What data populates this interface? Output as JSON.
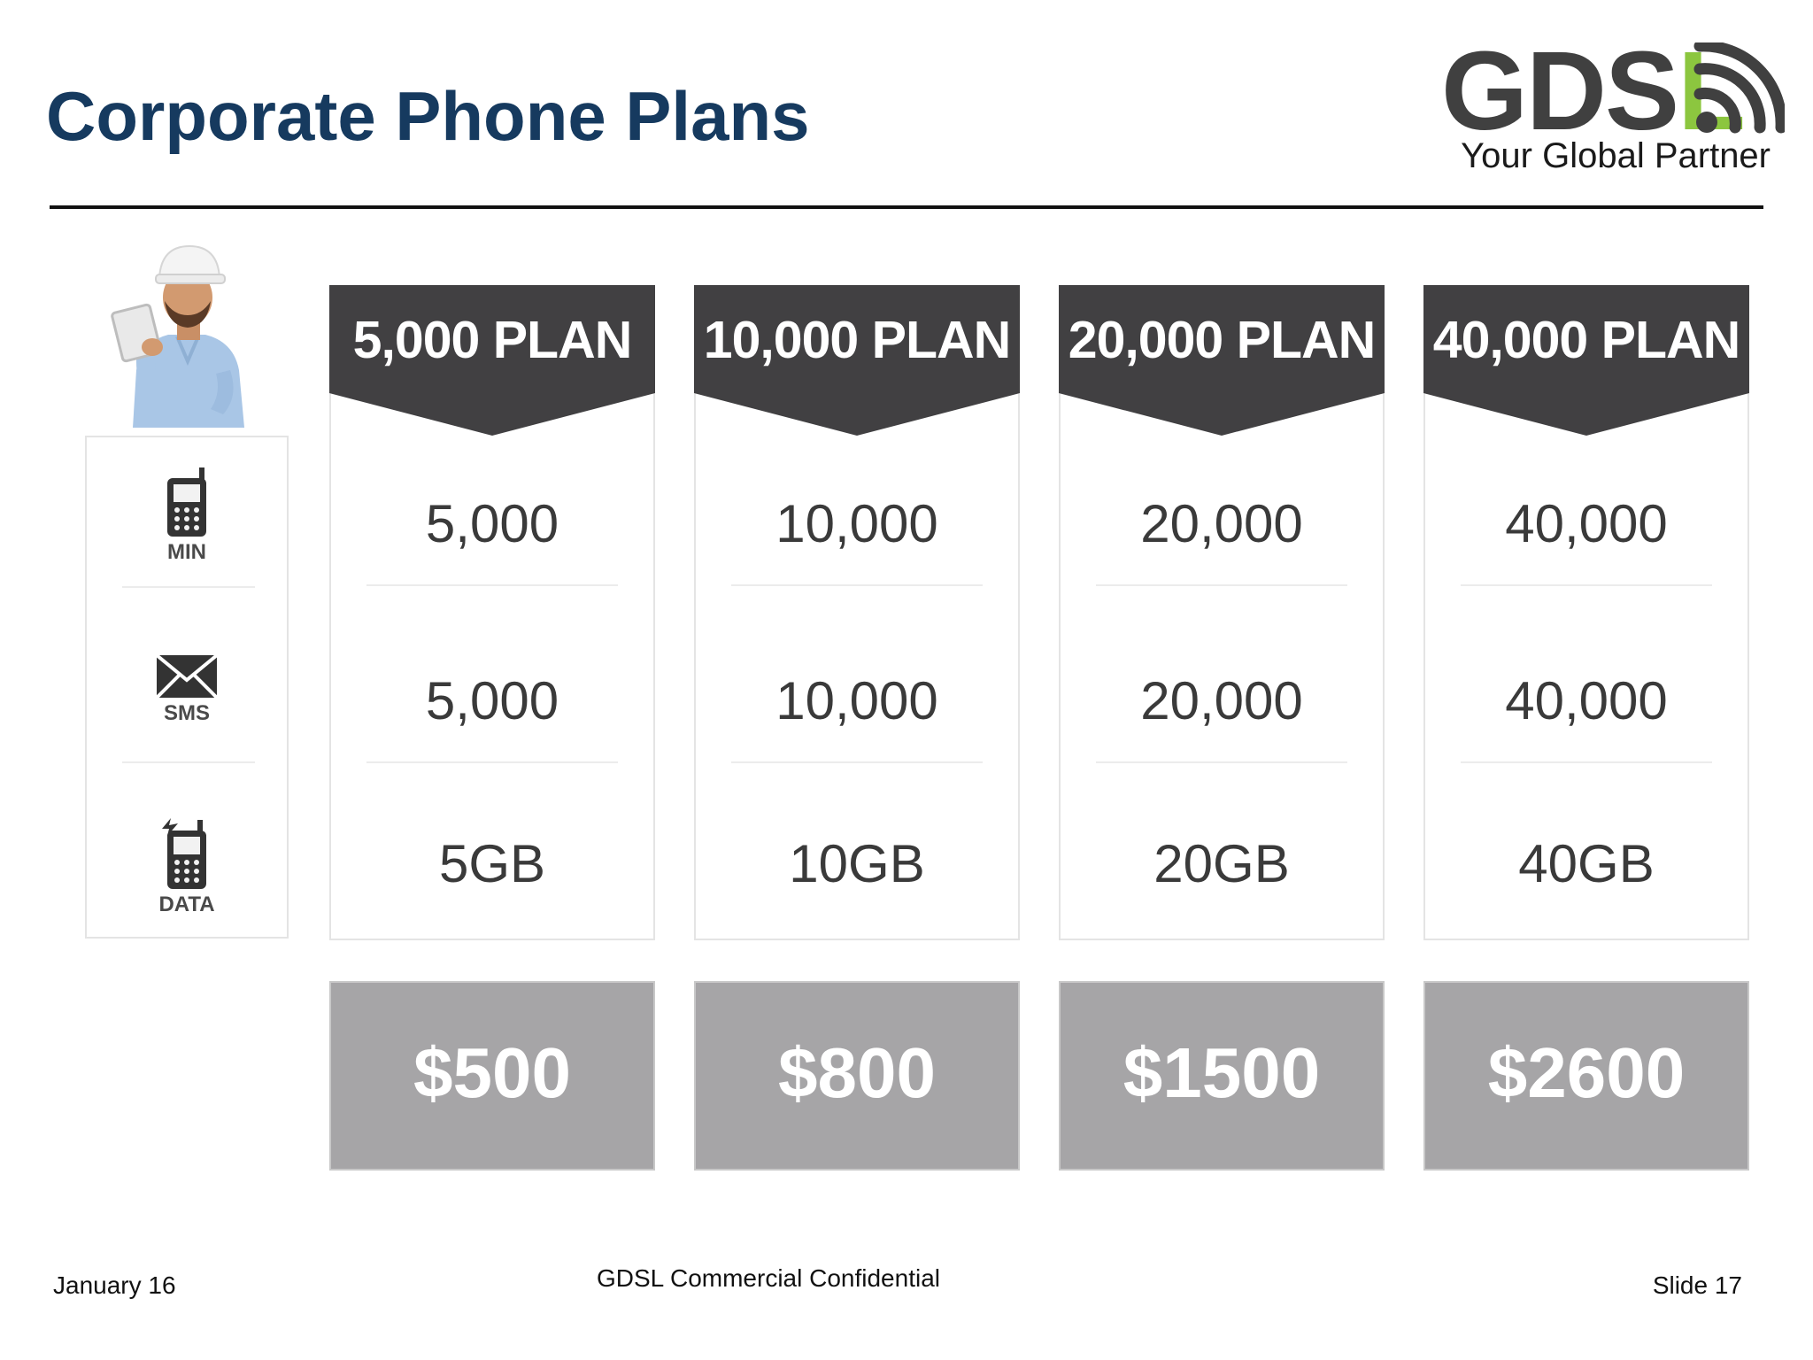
{
  "slide": {
    "title": "Corporate Phone Plans"
  },
  "logo": {
    "brand_main": "GDS",
    "brand_accent": "L",
    "tagline": "Your Global Partner",
    "icon": "wifi-signal-icon",
    "colors": {
      "text": "#404040",
      "accent": "#8cc63f"
    }
  },
  "features": [
    {
      "icon": "mobile-phone-icon",
      "label": "MIN"
    },
    {
      "icon": "envelope-icon",
      "label": "SMS"
    },
    {
      "icon": "mobile-data-icon",
      "label": "DATA"
    }
  ],
  "plans": [
    {
      "name": "5,000 PLAN",
      "minutes": "5,000",
      "sms": "5,000",
      "data": "5GB",
      "price": "$500"
    },
    {
      "name": "10,000 PLAN",
      "minutes": "10,000",
      "sms": "10,000",
      "data": "10GB",
      "price": "$800"
    },
    {
      "name": "20,000 PLAN",
      "minutes": "20,000",
      "sms": "20,000",
      "data": "20GB",
      "price": "$1500"
    },
    {
      "name": "40,000 PLAN",
      "minutes": "40,000",
      "sms": "40,000",
      "data": "40GB",
      "price": "$2600"
    }
  ],
  "colors": {
    "title": "#163a5f",
    "plan_header": "#414042",
    "price_box": "#a6a5a7"
  },
  "footer": {
    "date": "January 16",
    "confidential": "GDSL Commercial Confidential",
    "slide_number": "Slide 17"
  }
}
